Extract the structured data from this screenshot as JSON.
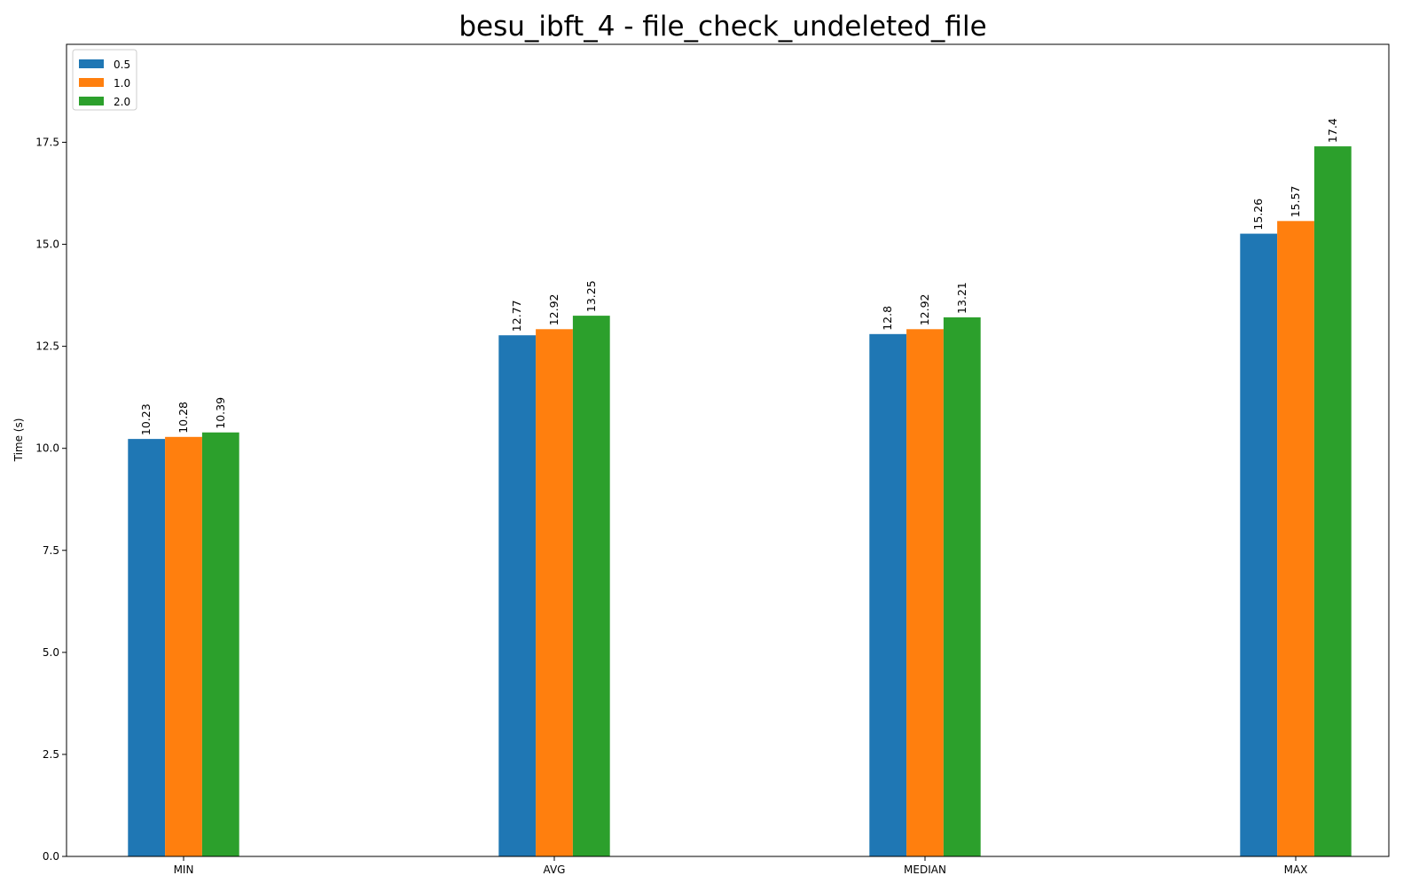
{
  "chart_data": {
    "type": "bar",
    "title": "besu_ibft_4 - file_check_undeleted_file",
    "xlabel": "",
    "ylabel": "Time (s)",
    "categories": [
      "MIN",
      "AVG",
      "MEDIAN",
      "MAX"
    ],
    "series": [
      {
        "name": "0.5",
        "color": "#1f77b4",
        "values": [
          10.23,
          12.77,
          12.8,
          15.26
        ],
        "labels": [
          "10.23",
          "12.77",
          "12.8",
          "15.26"
        ]
      },
      {
        "name": "1.0",
        "color": "#ff7f0e",
        "values": [
          10.28,
          12.92,
          12.92,
          15.57
        ],
        "labels": [
          "10.28",
          "12.92",
          "12.92",
          "15.57"
        ]
      },
      {
        "name": "2.0",
        "color": "#2ca02c",
        "values": [
          10.39,
          13.25,
          13.21,
          17.4
        ],
        "labels": [
          "10.39",
          "13.25",
          "13.21",
          "17.4"
        ]
      }
    ],
    "ylim": [
      0,
      19.9
    ],
    "yticks": [
      0.0,
      2.5,
      5.0,
      7.5,
      10.0,
      12.5,
      15.0,
      17.5
    ],
    "ytick_labels": [
      "0.0",
      "2.5",
      "5.0",
      "7.5",
      "10.0",
      "12.5",
      "15.0",
      "17.5"
    ],
    "grid": false,
    "legend_position": "top-left"
  }
}
